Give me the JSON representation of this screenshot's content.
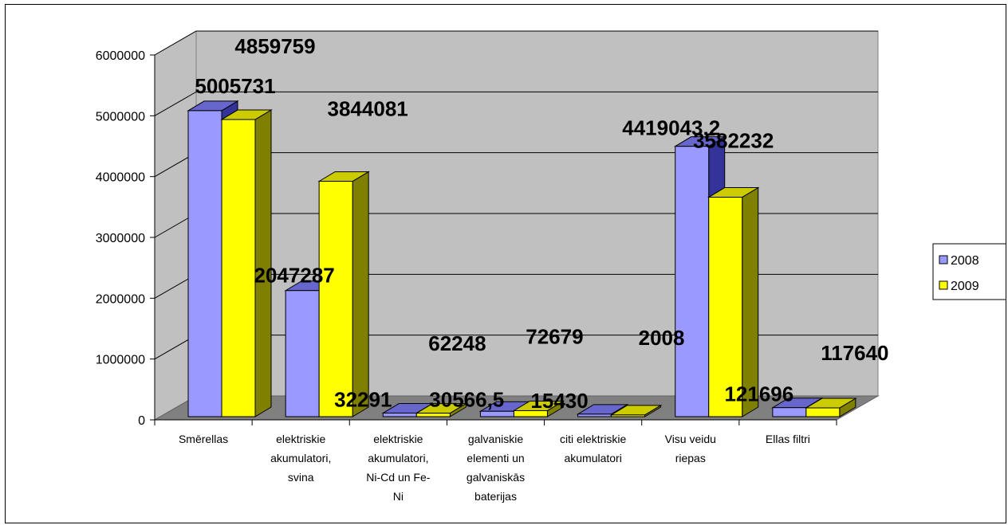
{
  "chart_data": {
    "type": "bar",
    "categories": [
      [
        "Smērellas"
      ],
      [
        "elektriskie",
        "akumulatori,",
        "svina"
      ],
      [
        "elektriskie",
        "akumulatori,",
        "Ni-Cd un Fe-",
        "Ni"
      ],
      [
        "galvaniskie",
        "elementi un",
        "galvaniskās",
        "baterijas"
      ],
      [
        "citi elektriskie",
        "akumulatori"
      ],
      [
        "Visu veidu",
        "riepas"
      ],
      [
        "Ellas filtri"
      ]
    ],
    "series": [
      {
        "name": "2008",
        "color": "#9999ff",
        "side_color": "#333399",
        "top_color": "#6666cc",
        "values": [
          5005731,
          2047287,
          32291,
          62248,
          15430,
          4419043,
          121696
        ],
        "labels": [
          "5005731",
          "2047287",
          "32291",
          "62248",
          "15430",
          "4419043,2",
          "121696"
        ]
      },
      {
        "name": "2009",
        "color": "#ffff00",
        "side_color": "#808000",
        "top_color": "#cccc00",
        "values": [
          4859759,
          3844081,
          30566.5,
          72679,
          2008,
          3582232,
          117640
        ],
        "labels": [
          "4859759",
          "3844081",
          "30566,5",
          "72679",
          "2008",
          "3582232",
          "117640"
        ]
      }
    ],
    "ylim": [
      0,
      6000000
    ],
    "yticks": [
      "0",
      "1000000",
      "2000000",
      "3000000",
      "4000000",
      "5000000",
      "6000000"
    ],
    "grid": true,
    "legend": "right",
    "title": "",
    "xlabel": "",
    "ylabel": ""
  }
}
